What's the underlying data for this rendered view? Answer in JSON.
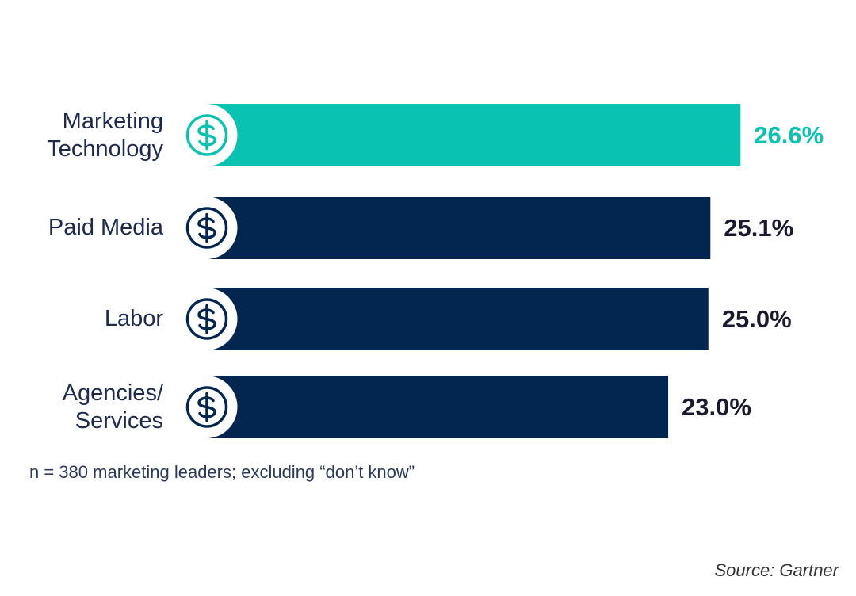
{
  "chart_data": {
    "type": "bar",
    "orientation": "horizontal",
    "categories": [
      "Marketing\nTechnology",
      "Paid Media",
      "Labor",
      "Agencies/\nServices"
    ],
    "values": [
      26.6,
      25.1,
      25.0,
      23.0
    ],
    "value_labels": [
      "26.6%",
      "25.1%",
      "25.0%",
      "23.0%"
    ],
    "icon": "dollar-coin-icon",
    "highlight_index": 0,
    "colors": {
      "highlight": "#0ac2b1",
      "default": "#02264f",
      "category_text": "#1c2a4d"
    },
    "grid": false,
    "legend": "none"
  },
  "footnote": "n = 380 marketing leaders; excluding “don’t know”",
  "source": "Source: Gartner"
}
